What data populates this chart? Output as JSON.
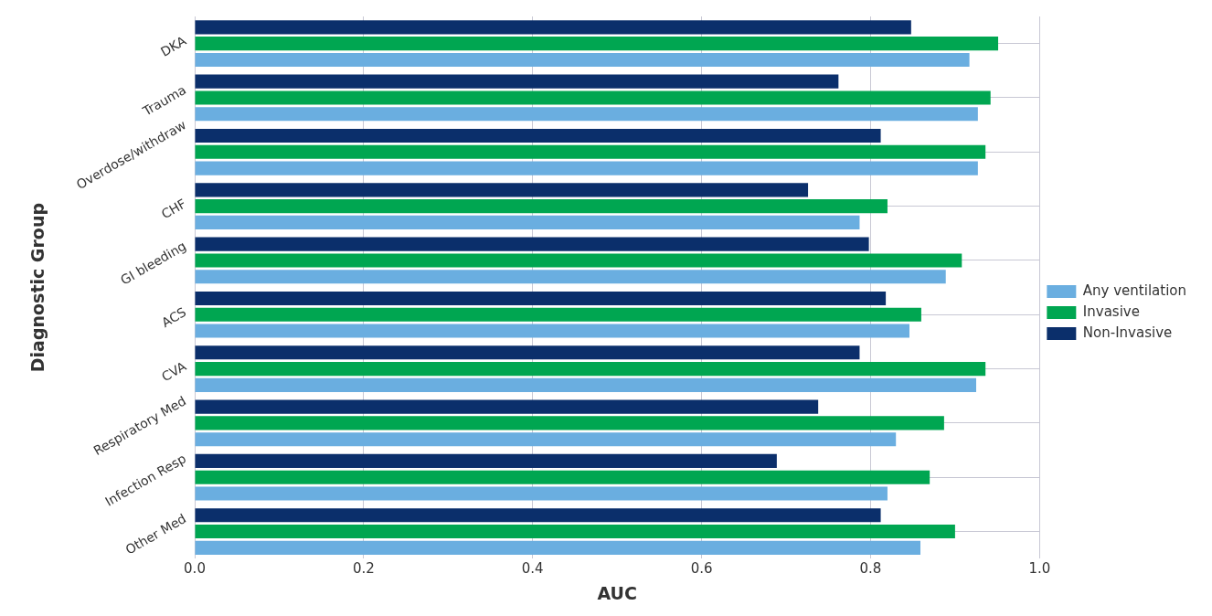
{
  "chart_data": {
    "type": "bar",
    "orientation": "horizontal",
    "xlabel": "AUC",
    "ylabel": "Diagnostic Group",
    "categories": [
      "DKA",
      "Trauma",
      "Overdose/withdraw",
      "CHF",
      "GI bleeding",
      "ACS",
      "CVA",
      "Respiratory Med",
      "Infection Resp",
      "Other Med"
    ],
    "series": [
      {
        "name": "Non-Invasive",
        "color": "#0b2f6b",
        "values": [
          0.848,
          0.762,
          0.812,
          0.726,
          0.798,
          0.818,
          0.787,
          0.738,
          0.689,
          0.812
        ]
      },
      {
        "name": "Invasive",
        "color": "#00a651",
        "values": [
          0.951,
          0.942,
          0.936,
          0.82,
          0.908,
          0.86,
          0.936,
          0.887,
          0.87,
          0.9
        ]
      },
      {
        "name": "Any ventilation",
        "color": "#6aaee0",
        "values": [
          0.917,
          0.927,
          0.927,
          0.787,
          0.889,
          0.846,
          0.925,
          0.83,
          0.82,
          0.859
        ]
      }
    ],
    "xlim": [
      0,
      1.0
    ],
    "xticks": [
      {
        "value": 0,
        "label": "0.0"
      },
      0.2,
      0.4,
      0.6,
      0.8,
      {
        "value": 1.0,
        "label": "1.0"
      }
    ],
    "grid": true,
    "legend": "right"
  }
}
